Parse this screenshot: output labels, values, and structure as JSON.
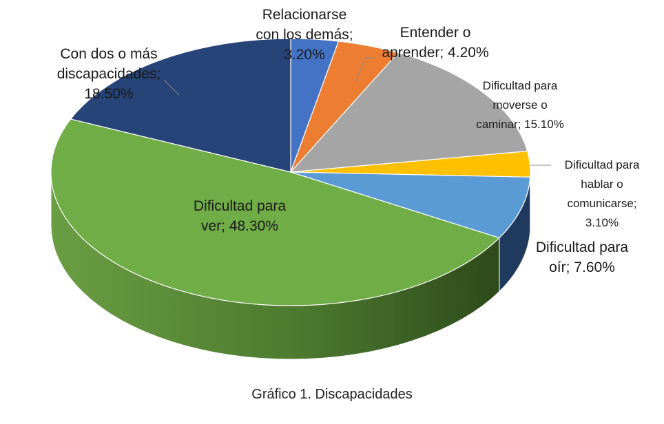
{
  "caption": "Gráfico 1. Discapacidades",
  "chart_data": {
    "type": "pie",
    "slices": [
      {
        "name": "Relacionarse con los demás",
        "value": 3.2,
        "label_lines": [
          "Relacionarse",
          "con los demás;",
          "3.20%"
        ],
        "color": "#4472C4",
        "side": "#2F528F"
      },
      {
        "name": "Entender o aprender",
        "value": 4.2,
        "label_lines": [
          "Entender o",
          "aprender; 4.20%"
        ],
        "color": "#ED7D31",
        "side": "#A9541D"
      },
      {
        "name": "Dificultad para moverse o caminar",
        "value": 15.1,
        "label_lines": [
          "Dificultad para",
          "moverse o",
          "caminar; 15.10%"
        ],
        "color": "#A5A5A5",
        "side": "#6F6F6F"
      },
      {
        "name": "Dificultad para hablar o comunicarse",
        "value": 3.1,
        "label_lines": [
          "Dificultad para",
          "hablar o",
          "comunicarse;",
          "3.10%"
        ],
        "color": "#FFC000",
        "side": "#B38600"
      },
      {
        "name": "Dificultad para oír",
        "value": 7.6,
        "label_lines": [
          "Dificultad para",
          "oír; 7.60%"
        ],
        "color": "#5B9BD5",
        "side": "#1F3A5C"
      },
      {
        "name": "Dificultad para ver",
        "value": 48.3,
        "label_lines": [
          "Dificultad para",
          "ver; 48.30%"
        ],
        "color": "#70AD47",
        "side": "#4E7B31"
      },
      {
        "name": "Con dos o más discapacidades",
        "value": 18.5,
        "label_lines": [
          "Con dos o más",
          "discapacidades;",
          "18.50%"
        ],
        "color": "#264478",
        "side": "#1A2F54"
      }
    ]
  }
}
